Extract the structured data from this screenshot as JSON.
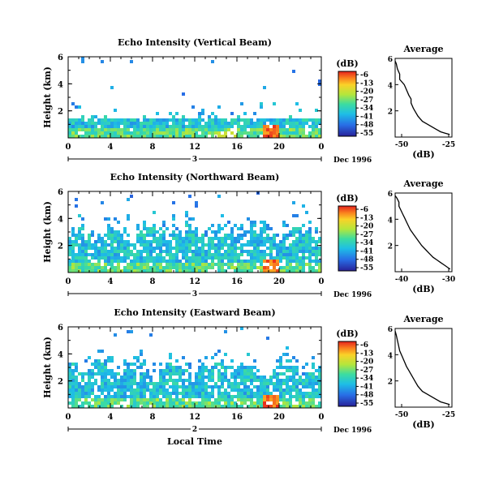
{
  "figure": {
    "xlabel": "Local Time"
  },
  "chart_data": [
    {
      "type": "heatmap",
      "title": "Echo Intensity (Vertical Beam)",
      "ylabel": "Height (km)",
      "xlim": [
        0,
        24
      ],
      "ylim": [
        0,
        6
      ],
      "xticks": [
        "0",
        "4",
        "8",
        "12",
        "16",
        "20",
        "0"
      ],
      "yticks": [
        "2",
        "4",
        "6"
      ],
      "day_marker": "3",
      "date_label": "Dec 1996",
      "colorbar": {
        "unit": "(dB)",
        "ticks": [
          "-6",
          "-13",
          "-20",
          "-27",
          "-34",
          "-41",
          "-48",
          "-55"
        ]
      },
      "profile": {
        "title": "Average",
        "xlabel": "(dB)",
        "xticks": [
          "-50",
          "-25"
        ],
        "yticks": [
          "2",
          "4",
          "6"
        ],
        "xlim": [
          -50,
          -25
        ],
        "ylim": [
          0,
          6
        ],
        "x": [
          -50,
          -49.5,
          -49,
          -48,
          -48,
          -46,
          -45,
          -44,
          -43,
          -43,
          -42,
          -41,
          -40,
          -39,
          -38,
          -36,
          -34,
          -32,
          -30,
          -28,
          -26
        ],
        "y": [
          5.8,
          5.6,
          5.2,
          4.8,
          4.4,
          4.0,
          3.6,
          3.2,
          2.9,
          2.6,
          2.2,
          1.9,
          1.6,
          1.4,
          1.2,
          1.0,
          0.8,
          0.6,
          0.4,
          0.3,
          0.2
        ]
      }
    },
    {
      "type": "heatmap",
      "title": "Echo Intensity (Northward Beam)",
      "ylabel": "Height (km)",
      "xlim": [
        0,
        24
      ],
      "ylim": [
        0,
        6
      ],
      "xticks": [
        "0",
        "4",
        "8",
        "12",
        "16",
        "20",
        "0"
      ],
      "yticks": [
        "2",
        "4",
        "6"
      ],
      "day_marker": "3",
      "date_label": "Dec 1996",
      "colorbar": {
        "unit": "(dB)",
        "ticks": [
          "-6",
          "-13",
          "-20",
          "-27",
          "-34",
          "-41",
          "-48",
          "-55"
        ]
      },
      "profile": {
        "title": "Average",
        "xlabel": "(dB)",
        "xticks": [
          "-40",
          "-30"
        ],
        "yticks": [
          "2",
          "4",
          "6"
        ],
        "xlim": [
          -45,
          -30
        ],
        "ylim": [
          0,
          6
        ],
        "x": [
          -45,
          -44.5,
          -44,
          -44,
          -43.5,
          -43,
          -42.5,
          -42,
          -41.5,
          -41,
          -40,
          -39,
          -38,
          -37,
          -36,
          -35,
          -34,
          -33,
          -32,
          -31,
          -30.5
        ],
        "y": [
          5.8,
          5.6,
          5.3,
          5.0,
          4.7,
          4.4,
          4.1,
          3.8,
          3.5,
          3.2,
          2.8,
          2.4,
          2.0,
          1.7,
          1.4,
          1.1,
          0.9,
          0.7,
          0.5,
          0.3,
          0.2
        ]
      }
    },
    {
      "type": "heatmap",
      "title": "Echo Intensity (Eastward Beam)",
      "ylabel": "Height (km)",
      "xlim": [
        0,
        24
      ],
      "ylim": [
        0,
        6
      ],
      "xticks": [
        "0",
        "4",
        "8",
        "12",
        "16",
        "20",
        "0"
      ],
      "yticks": [
        "2",
        "4",
        "6"
      ],
      "day_marker": "2",
      "date_label": "Dec 1996",
      "colorbar": {
        "unit": "(dB)",
        "ticks": [
          "-6",
          "-13",
          "-20",
          "-27",
          "-34",
          "-41",
          "-48",
          "-55"
        ]
      },
      "profile": {
        "title": "Average",
        "xlabel": "(dB)",
        "xticks": [
          "-50",
          "-25"
        ],
        "yticks": [
          "2",
          "4",
          "6"
        ],
        "xlim": [
          -50,
          -25
        ],
        "ylim": [
          0,
          6
        ],
        "x": [
          -50,
          -49.5,
          -49,
          -48.5,
          -48,
          -47,
          -46,
          -45,
          -44,
          -43,
          -42,
          -41,
          -40,
          -39,
          -38,
          -36,
          -34,
          -32,
          -30,
          -28,
          -26
        ],
        "y": [
          5.8,
          5.5,
          5.1,
          4.7,
          4.3,
          3.9,
          3.5,
          3.1,
          2.8,
          2.5,
          2.2,
          1.9,
          1.6,
          1.4,
          1.2,
          1.0,
          0.8,
          0.6,
          0.4,
          0.3,
          0.2
        ]
      }
    }
  ]
}
